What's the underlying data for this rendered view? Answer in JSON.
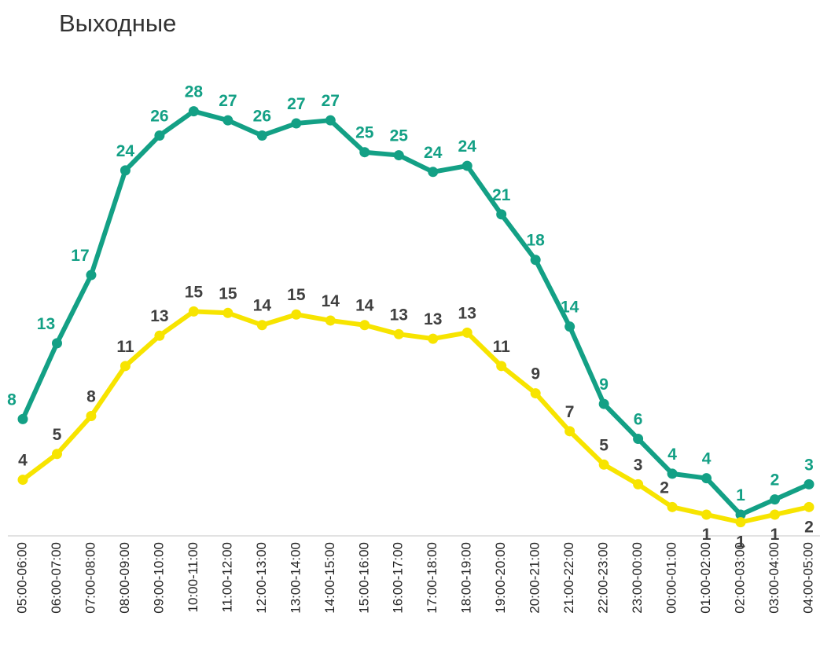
{
  "chart_data": {
    "type": "line",
    "title": "Выходные",
    "categories": [
      "05:00-06:00",
      "06:00-07:00",
      "07:00-08:00",
      "08:00-09:00",
      "09:00-10:00",
      "10:00-11:00",
      "11:00-12:00",
      "12:00-13:00",
      "13:00-14:00",
      "14:00-15:00",
      "15:00-16:00",
      "16:00-17:00",
      "17:00-18:00",
      "18:00-19:00",
      "19:00-20:00",
      "20:00-21:00",
      "21:00-22:00",
      "22:00-23:00",
      "23:00-00:00",
      "00:00-01:00",
      "01:00-02:00",
      "02:00-03:00",
      "03:00-04:00",
      "04:00-05:00"
    ],
    "series": [
      {
        "color": "#13a085",
        "label_color": "#13a085",
        "values": [
          7.7,
          12.7,
          17.2,
          24.1,
          26.4,
          28.0,
          27.4,
          26.4,
          27.2,
          27.4,
          25.3,
          25.1,
          24.0,
          24.4,
          21.2,
          18.2,
          13.8,
          8.7,
          6.4,
          4.1,
          3.8,
          1.4,
          2.4,
          3.4
        ],
        "value_labels": [
          "8",
          "13",
          "17",
          "24",
          "26",
          "28",
          "27",
          "26",
          "27",
          "27",
          "25",
          "25",
          "24",
          "24",
          "21",
          "18",
          "14",
          "9",
          "6",
          "4",
          "4",
          "1",
          "2",
          "3"
        ]
      },
      {
        "color": "#f7e400",
        "label_color": "#404040",
        "values": [
          3.7,
          5.4,
          7.9,
          11.2,
          13.2,
          14.8,
          14.7,
          13.9,
          14.6,
          14.2,
          13.9,
          13.3,
          13.0,
          13.4,
          11.2,
          9.4,
          6.9,
          4.7,
          3.4,
          1.9,
          1.4,
          0.9,
          1.4,
          1.9
        ],
        "value_labels": [
          "4",
          "5",
          "8",
          "11",
          "13",
          "15",
          "15",
          "14",
          "15",
          "14",
          "14",
          "13",
          "13",
          "13",
          "11",
          "9",
          "7",
          "5",
          "3",
          "2",
          "1",
          "1",
          "1",
          "2"
        ]
      }
    ],
    "ylim": [
      0,
      30
    ]
  }
}
